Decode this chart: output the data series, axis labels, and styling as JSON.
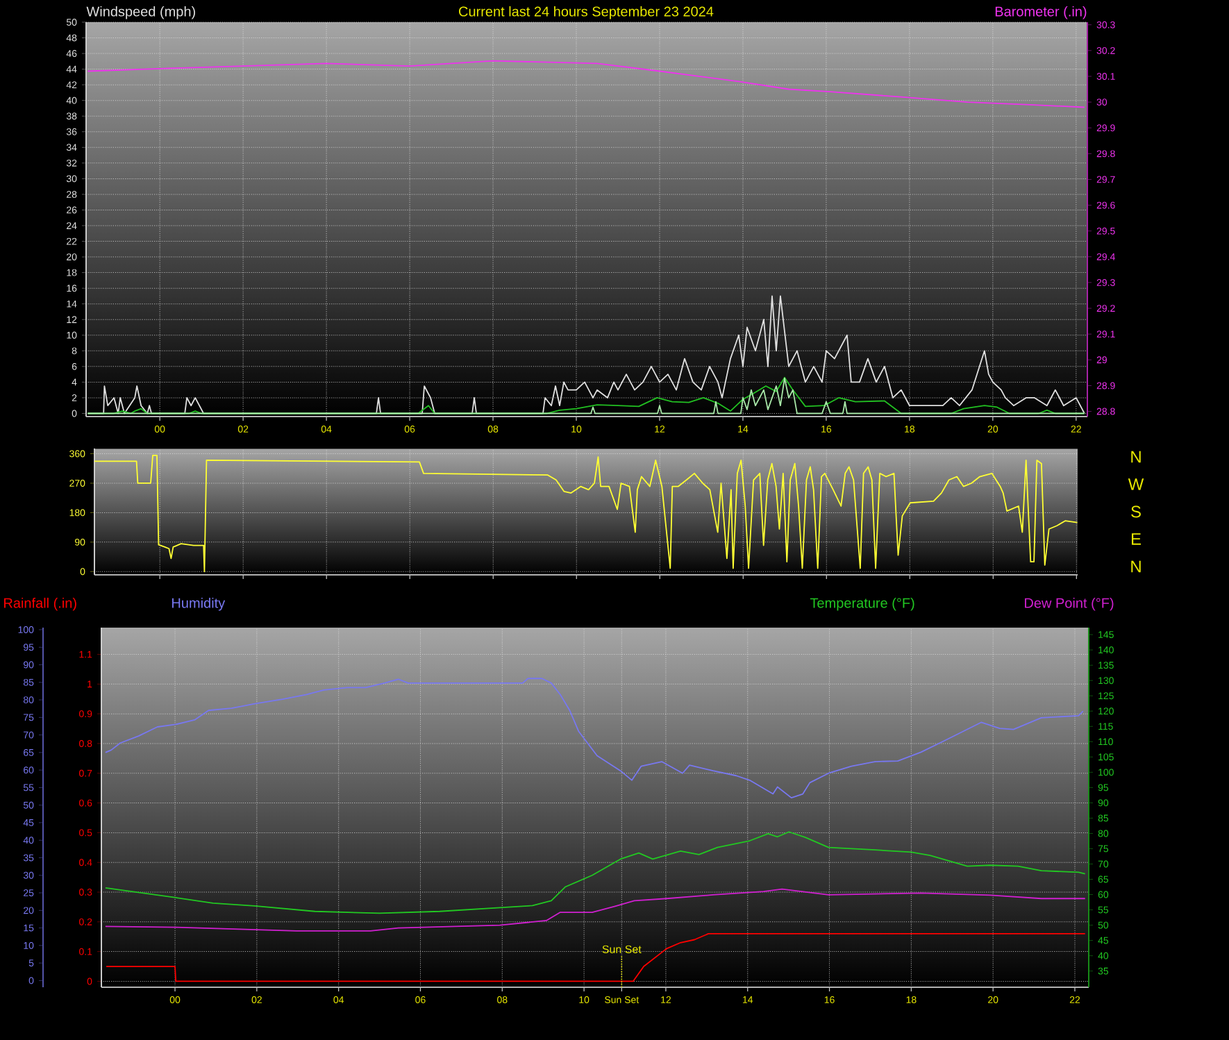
{
  "chart_data": [
    {
      "type": "line",
      "title": "Current last 24 hours September 23 2024",
      "ylabel": "Windspeed (mph)",
      "y2label": "Barometer (.in)",
      "xlim": [
        -1.77,
        22.27
      ],
      "ylim": [
        -0.4,
        50
      ],
      "y2lim": [
        28.78,
        30.31
      ],
      "xticks": [
        {
          "value": 0,
          "label": "00"
        },
        {
          "value": 2,
          "label": "02"
        },
        {
          "value": 4,
          "label": "04"
        },
        {
          "value": 6,
          "label": "06"
        },
        {
          "value": 8,
          "label": "08"
        },
        {
          "value": 10,
          "label": "10"
        },
        {
          "value": 12,
          "label": "12"
        },
        {
          "value": 14,
          "label": "14"
        },
        {
          "value": 16,
          "label": "16"
        },
        {
          "value": 18,
          "label": "18"
        },
        {
          "value": 20,
          "label": "20"
        },
        {
          "value": 22,
          "label": "22"
        }
      ],
      "yticks": [
        0,
        2,
        4,
        6,
        8,
        10,
        12,
        14,
        16,
        18,
        20,
        22,
        24,
        26,
        28,
        30,
        32,
        34,
        36,
        38,
        40,
        42,
        44,
        46,
        48,
        50
      ],
      "y2ticks": [
        28.8,
        28.9,
        29,
        29.1,
        29.2,
        29.3,
        29.4,
        29.5,
        29.6,
        29.7,
        29.8,
        29.9,
        30,
        30.1,
        30.2,
        30.3
      ],
      "grid": true,
      "series": [
        {
          "color": "#e0e0e0",
          "x": [
            -1.73,
            -1.35,
            -1.33,
            -1.25,
            -1.1,
            -1.0,
            -0.95,
            -0.85,
            -0.6,
            -0.55,
            -0.45,
            -0.3,
            -0.25,
            -0.2,
            0.6,
            0.65,
            0.75,
            0.85,
            0.95,
            1.05,
            5.2,
            5.25,
            5.3,
            6.3,
            6.35,
            6.5,
            6.6,
            7.5,
            7.55,
            7.6,
            9.2,
            9.25,
            9.4,
            9.5,
            9.6,
            9.7,
            9.8,
            10.0,
            10.2,
            10.4,
            10.5,
            10.75,
            10.9,
            11.0,
            11.2,
            11.4,
            11.6,
            11.8,
            12.0,
            12.2,
            12.4,
            12.6,
            12.8,
            13.0,
            13.2,
            13.4,
            13.5,
            13.7,
            13.9,
            14.0,
            14.1,
            14.3,
            14.5,
            14.6,
            14.7,
            14.8,
            14.9,
            15.1,
            15.3,
            15.5,
            15.7,
            15.9,
            16.0,
            16.2,
            16.5,
            16.6,
            16.8,
            17.0,
            17.2,
            17.4,
            17.6,
            17.8,
            18.0,
            18.2,
            18.5,
            18.8,
            19.0,
            19.2,
            19.5,
            19.8,
            19.9,
            20.0,
            20.2,
            20.3,
            20.5,
            20.8,
            21.0,
            21.3,
            21.5,
            21.7,
            22.0,
            22.2
          ],
          "values": [
            0,
            0,
            3.5,
            1,
            2,
            0,
            2,
            0,
            2,
            3.5,
            1,
            0,
            1,
            0,
            0,
            2,
            1,
            2,
            1,
            0,
            0,
            2,
            0,
            0,
            3.5,
            2,
            0,
            0,
            2,
            0,
            0,
            2,
            1,
            3.5,
            1,
            4,
            3,
            3,
            4,
            2,
            3,
            2,
            4,
            3,
            5,
            3,
            4,
            6,
            4,
            5,
            3,
            7,
            4,
            3,
            6,
            4,
            2,
            7,
            10,
            6,
            11,
            8,
            12,
            6,
            15,
            8,
            15,
            6,
            8,
            4,
            6,
            4,
            8,
            7,
            10,
            4,
            4,
            7,
            4,
            6,
            2,
            3,
            1,
            1,
            1,
            1,
            2,
            1,
            3,
            8,
            5,
            4,
            3,
            2,
            1,
            2,
            2,
            1,
            3,
            1,
            2,
            0
          ]
        },
        {
          "color": "#22c022",
          "x": [
            -1.73,
            -1.1,
            -0.9,
            -0.7,
            -0.6,
            -0.45,
            -0.3,
            0.7,
            0.85,
            1.0,
            6.2,
            6.45,
            6.6,
            9.3,
            9.6,
            10.0,
            10.5,
            11.0,
            11.5,
            11.94,
            12.3,
            12.7,
            13.05,
            13.4,
            13.7,
            14.0,
            14.3,
            14.55,
            14.8,
            15.0,
            15.2,
            15.5,
            15.95,
            16.3,
            16.7,
            17.4,
            17.8,
            19.0,
            19.3,
            19.8,
            20.1,
            20.4,
            21.1,
            21.3,
            21.5,
            22.2
          ],
          "values": [
            0,
            0,
            0.3,
            0,
            0.3,
            0.6,
            0,
            0,
            0.3,
            0,
            0,
            1,
            0,
            0,
            0.4,
            0.6,
            1.1,
            1,
            0.9,
            2,
            1.5,
            1.4,
            2,
            1.3,
            0.3,
            1.8,
            2.7,
            3.5,
            2.8,
            4.6,
            3,
            0.9,
            1,
            2,
            1.5,
            1.6,
            0,
            0,
            0.6,
            1,
            0.8,
            0,
            0,
            0.4,
            0,
            0
          ]
        },
        {
          "color": "#a8e8a8",
          "x": [
            -1.73,
            10.35,
            10.4,
            10.45,
            11.95,
            12.0,
            12.05,
            13.3,
            13.35,
            13.4,
            13.95,
            14.0,
            14.1,
            14.2,
            14.3,
            14.5,
            14.6,
            14.8,
            14.9,
            15.0,
            15.1,
            15.2,
            15.3,
            15.9,
            16.0,
            16.1,
            16.4,
            16.45,
            16.5,
            22.2
          ],
          "values": [
            0,
            0,
            0.8,
            0,
            0,
            1,
            0,
            0,
            1.5,
            0,
            0,
            2,
            0.5,
            3,
            1,
            3,
            0.5,
            3.5,
            1,
            4.5,
            2,
            3,
            0,
            0,
            1.5,
            0,
            0,
            1.5,
            0,
            0
          ]
        },
        {
          "color": "#ee33ee",
          "axis": "y2",
          "x": [
            -1.73,
            0,
            2,
            4,
            6,
            8,
            10.5,
            12,
            13.9,
            15.1,
            16.1,
            17.8,
            19.4,
            20.9,
            22.2
          ],
          "values": [
            30.12,
            30.13,
            30.14,
            30.15,
            30.14,
            30.16,
            30.15,
            30.12,
            30.08,
            30.05,
            30.04,
            30.02,
            30.0,
            29.99,
            29.98
          ]
        }
      ]
    },
    {
      "type": "line",
      "xlim": [
        -1.57,
        22.03
      ],
      "ylim": [
        -10,
        376
      ],
      "annotations": [
        "N",
        "W",
        "S",
        "E",
        "N"
      ],
      "xticks": [
        0,
        2,
        4,
        6,
        8,
        10,
        12,
        14,
        16,
        18,
        20,
        22
      ],
      "yticks": [
        0,
        90,
        180,
        270,
        360
      ],
      "tick_labels": "y",
      "grid": true,
      "series": [
        {
          "color": "#ffff33",
          "x": [
            -1.57,
            -0.56,
            -0.53,
            -0.22,
            -0.17,
            -0.07,
            -0.03,
            0.12,
            0.22,
            0.27,
            0.32,
            0.51,
            0.81,
            1.05,
            1.07,
            1.12,
            6.23,
            6.33,
            9.31,
            9.51,
            9.7,
            9.87,
            10.1,
            10.29,
            10.43,
            10.52,
            10.58,
            10.78,
            10.98,
            11.07,
            11.27,
            11.41,
            11.46,
            11.56,
            11.76,
            11.9,
            12.05,
            12.25,
            12.3,
            12.44,
            12.64,
            12.83,
            13.03,
            13.2,
            13.39,
            13.47,
            13.61,
            13.71,
            13.76,
            13.86,
            13.95,
            14.05,
            14.13,
            14.25,
            14.4,
            14.49,
            14.59,
            14.69,
            14.79,
            14.87,
            14.96,
            15.05,
            15.13,
            15.24,
            15.33,
            15.42,
            15.52,
            15.61,
            15.69,
            15.79,
            15.88,
            15.96,
            16.16,
            16.35,
            16.45,
            16.54,
            16.65,
            16.81,
            16.89,
            17.0,
            17.09,
            17.18,
            17.28,
            17.43,
            17.62,
            17.72,
            17.82,
            18.01,
            18.57,
            18.76,
            18.94,
            19.13,
            19.29,
            19.48,
            19.68,
            19.97,
            20.17,
            20.24,
            20.33,
            20.61,
            20.7,
            20.79,
            20.9,
            20.98,
            21.05,
            21.16,
            21.24,
            21.34,
            21.53,
            21.73,
            22.02
          ],
          "values": [
            337,
            337,
            270,
            270,
            355,
            355,
            82,
            75,
            70,
            40,
            75,
            85,
            80,
            80,
            0,
            340,
            335,
            300,
            295,
            280,
            245,
            240,
            260,
            250,
            270,
            350,
            260,
            260,
            190,
            270,
            260,
            120,
            250,
            290,
            260,
            340,
            260,
            10,
            260,
            260,
            280,
            300,
            270,
            250,
            120,
            270,
            40,
            250,
            10,
            300,
            340,
            200,
            10,
            280,
            300,
            80,
            280,
            330,
            260,
            130,
            300,
            30,
            280,
            330,
            200,
            10,
            280,
            320,
            250,
            10,
            290,
            300,
            250,
            200,
            300,
            320,
            280,
            10,
            300,
            320,
            280,
            10,
            300,
            290,
            300,
            50,
            170,
            210,
            215,
            240,
            280,
            290,
            260,
            270,
            290,
            300,
            260,
            240,
            185,
            200,
            120,
            340,
            30,
            30,
            340,
            330,
            20,
            130,
            140,
            155,
            150
          ]
        }
      ]
    },
    {
      "type": "line",
      "xlim": [
        -1.8,
        22.34
      ],
      "ylim": [
        -0.02,
        1.19
      ],
      "y3lim": [
        -1.9,
        100.6
      ],
      "y2lim": [
        29.7,
        147.3
      ],
      "xticks": [
        {
          "value": 0,
          "label": "00"
        },
        {
          "value": 2,
          "label": "02"
        },
        {
          "value": 4,
          "label": "04"
        },
        {
          "value": 6,
          "label": "06"
        },
        {
          "value": 8,
          "label": "08"
        },
        {
          "value": 10,
          "label": "10"
        },
        {
          "value": 10.92,
          "label": "Sun Set"
        },
        {
          "value": 12,
          "label": "12"
        },
        {
          "value": 14,
          "label": "14"
        },
        {
          "value": 16,
          "label": "16"
        },
        {
          "value": 18,
          "label": "18"
        },
        {
          "value": 20,
          "label": "20"
        },
        {
          "value": 22,
          "label": "22"
        }
      ],
      "yticks": [
        0,
        0.1,
        0.2,
        0.3,
        0.4,
        0.5,
        0.6,
        0.7,
        0.8,
        0.9,
        1,
        1.1
      ],
      "y3ticks": [
        0,
        5,
        10,
        15,
        20,
        25,
        30,
        35,
        40,
        45,
        50,
        55,
        60,
        65,
        70,
        75,
        80,
        85,
        90,
        95,
        100
      ],
      "y2ticks": [
        35,
        40,
        45,
        50,
        55,
        60,
        65,
        70,
        75,
        80,
        85,
        90,
        95,
        100,
        105,
        110,
        115,
        120,
        125,
        130,
        135,
        140,
        145
      ],
      "grid": true,
      "legend": "top",
      "ref_lines": [
        {
          "axis": "x",
          "value": 10.92,
          "label": "Sun Set",
          "color": "#e8e800",
          "line_style": "dotted"
        }
      ],
      "series": [
        {
          "name": "Rainfall (.in)",
          "color": "#ff0000",
          "x": [
            -1.68,
            0.0,
            0.02,
            11.2,
            11.46,
            12.02,
            12.36,
            12.7,
            13.04,
            22.25
          ],
          "values": [
            0.05,
            0.05,
            0,
            0,
            0.05,
            0.11,
            0.13,
            0.14,
            0.16,
            0.16
          ]
        },
        {
          "name": "Humidity",
          "color": "#7878f0",
          "axis": "y3",
          "x": [
            -1.7,
            -1.56,
            -1.34,
            -0.89,
            -0.43,
            0.02,
            0.48,
            0.82,
            1.38,
            1.95,
            2.63,
            3.2,
            3.64,
            4.21,
            4.66,
            5.12,
            5.46,
            5.7,
            7.04,
            8.5,
            8.63,
            8.97,
            9.2,
            9.42,
            9.65,
            9.87,
            10.32,
            10.89,
            11.17,
            11.4,
            11.9,
            12.41,
            12.58,
            13.15,
            13.72,
            14.05,
            14.62,
            14.73,
            15.07,
            15.35,
            15.52,
            15.98,
            16.54,
            17.11,
            17.67,
            18.24,
            18.8,
            19.37,
            19.71,
            20.16,
            20.5,
            21.18,
            22.09,
            22.2
          ],
          "values": [
            65,
            65.7,
            67.7,
            69.7,
            72.3,
            73,
            74.3,
            77,
            77.6,
            78.9,
            80.2,
            81.5,
            82.8,
            83.5,
            83.5,
            84.8,
            85.9,
            84.8,
            84.8,
            84.8,
            86.1,
            86.1,
            84.8,
            81.5,
            77,
            71,
            64.1,
            59.8,
            57.1,
            61.1,
            62.4,
            59.1,
            61.4,
            59.8,
            58.4,
            57.1,
            53.2,
            55.2,
            52.1,
            53.2,
            56.4,
            59.1,
            61.1,
            62.4,
            62.6,
            65.1,
            68.3,
            71.6,
            73.6,
            71.9,
            71.6,
            74.9,
            75.5,
            76.8
          ]
        },
        {
          "name": "Temperature (°F)",
          "color": "#22c822",
          "axis": "y2",
          "x": [
            -1.7,
            0.02,
            0.93,
            1.95,
            3.42,
            5.0,
            6.47,
            7.94,
            8.74,
            9.2,
            9.54,
            10.2,
            10.89,
            11.34,
            11.68,
            12.36,
            12.81,
            13.26,
            14.05,
            14.5,
            14.73,
            15.01,
            15.41,
            15.98,
            17.11,
            18.0,
            18.46,
            19.37,
            19.93,
            20.61,
            21.18,
            22.09,
            22.25
          ],
          "values": [
            62.2,
            59,
            57.2,
            56.3,
            54.5,
            53.9,
            54.5,
            55.7,
            56.4,
            58,
            62.5,
            66.3,
            71.6,
            73.6,
            71.6,
            74.2,
            73.1,
            75.4,
            77.6,
            79.9,
            78.9,
            80.5,
            78.7,
            75.4,
            74.6,
            73.9,
            72.8,
            69.3,
            69.6,
            69.3,
            67.8,
            67.3,
            66.8
          ]
        },
        {
          "name": "Dew Point (°F)",
          "color": "#d020d0",
          "axis": "y2",
          "x": [
            -1.7,
            0.02,
            2.97,
            4.78,
            5.46,
            7.94,
            9.08,
            9.42,
            10.2,
            10.76,
            11.23,
            12.02,
            13.15,
            14.39,
            14.84,
            15.98,
            18.24,
            19.93,
            21.18,
            22.25
          ],
          "values": [
            49.6,
            49.3,
            48.1,
            48.1,
            49.1,
            50,
            51.5,
            54.2,
            54.2,
            56.2,
            58,
            58.7,
            59.9,
            61,
            61.8,
            59.9,
            60.5,
            59.8,
            58.7,
            58.7
          ]
        }
      ]
    }
  ]
}
